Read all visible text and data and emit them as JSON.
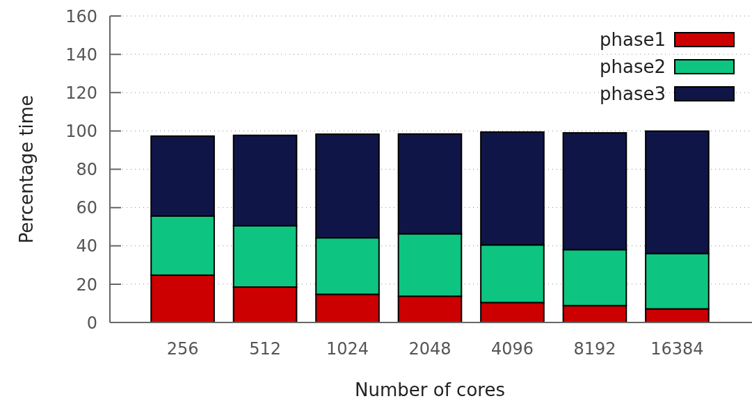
{
  "chart_data": {
    "type": "bar",
    "stacked": true,
    "xlabel": "Number of cores",
    "ylabel": "Percentage time",
    "categories": [
      "256",
      "512",
      "1024",
      "2048",
      "4096",
      "8192",
      "16384"
    ],
    "series": [
      {
        "name": "phase1",
        "color": "#cc0000",
        "values": [
          24.7,
          18.5,
          14.7,
          13.7,
          10.4,
          8.8,
          7.1
        ]
      },
      {
        "name": "phase2",
        "color": "#0dc581",
        "values": [
          30.9,
          32.0,
          29.5,
          32.6,
          30.1,
          29.2,
          28.9
        ]
      },
      {
        "name": "phase3",
        "color": "#0f1647",
        "values": [
          41.7,
          47.2,
          54.1,
          52.1,
          58.9,
          61.0,
          63.9
        ]
      }
    ],
    "ylim": [
      0,
      160
    ],
    "yticks": [
      0,
      20,
      40,
      60,
      80,
      100,
      120,
      140,
      160
    ],
    "grid": "y",
    "legend": "top right"
  }
}
